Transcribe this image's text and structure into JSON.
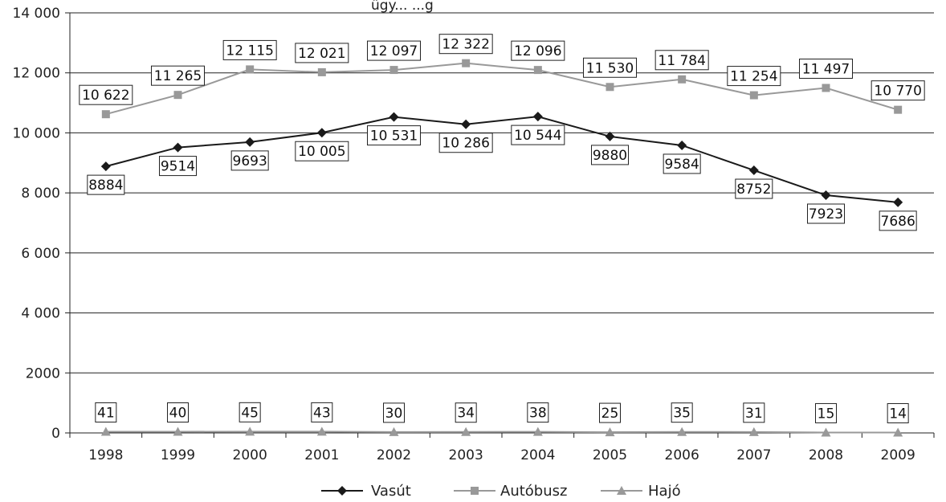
{
  "chart_data": {
    "type": "line",
    "title": "ügy... ...g",
    "categories": [
      "1998",
      "1999",
      "2000",
      "2001",
      "2002",
      "2003",
      "2004",
      "2005",
      "2006",
      "2007",
      "2008",
      "2009"
    ],
    "ylim": [
      0,
      14000
    ],
    "yticks": [
      {
        "value": 0,
        "label": "0"
      },
      {
        "value": 2000,
        "label": "2000"
      },
      {
        "value": 4000,
        "label": "4 000"
      },
      {
        "value": 6000,
        "label": "6 000"
      },
      {
        "value": 8000,
        "label": "8 000"
      },
      {
        "value": 10000,
        "label": "10 000"
      },
      {
        "value": 12000,
        "label": "12 000"
      },
      {
        "value": 14000,
        "label": "14 000"
      }
    ],
    "grid": true,
    "legend_position": "bottom",
    "series": [
      {
        "name": "Vasút",
        "marker": "diamond",
        "color": "#1a1a1a",
        "label_placement": "below",
        "values": [
          8884,
          9514,
          9693,
          10005,
          10531,
          10286,
          10544,
          9880,
          9584,
          8752,
          7923,
          7686
        ],
        "labels": [
          "8884",
          "9514",
          "9693",
          "10 005",
          "10 531",
          "10 286",
          "10 544",
          "9880",
          "9584",
          "8752",
          "7923",
          "7686"
        ]
      },
      {
        "name": "Autóbusz",
        "marker": "square",
        "color": "#999999",
        "label_placement": "above",
        "values": [
          10622,
          11265,
          12115,
          12021,
          12097,
          12322,
          12096,
          11530,
          11784,
          11254,
          11497,
          10770
        ],
        "labels": [
          "10 622",
          "11 265",
          "12 115",
          "12 021",
          "12 097",
          "12 322",
          "12 096",
          "11 530",
          "11 784",
          "11 254",
          "11 497",
          "10 770"
        ]
      },
      {
        "name": "Hajó",
        "marker": "triangle",
        "color": "#999999",
        "label_placement": "above",
        "values": [
          41,
          40,
          45,
          43,
          30,
          34,
          38,
          25,
          35,
          31,
          15,
          14
        ],
        "labels": [
          "41",
          "40",
          "45",
          "43",
          "30",
          "34",
          "38",
          "25",
          "35",
          "31",
          "15",
          "14"
        ]
      }
    ]
  }
}
